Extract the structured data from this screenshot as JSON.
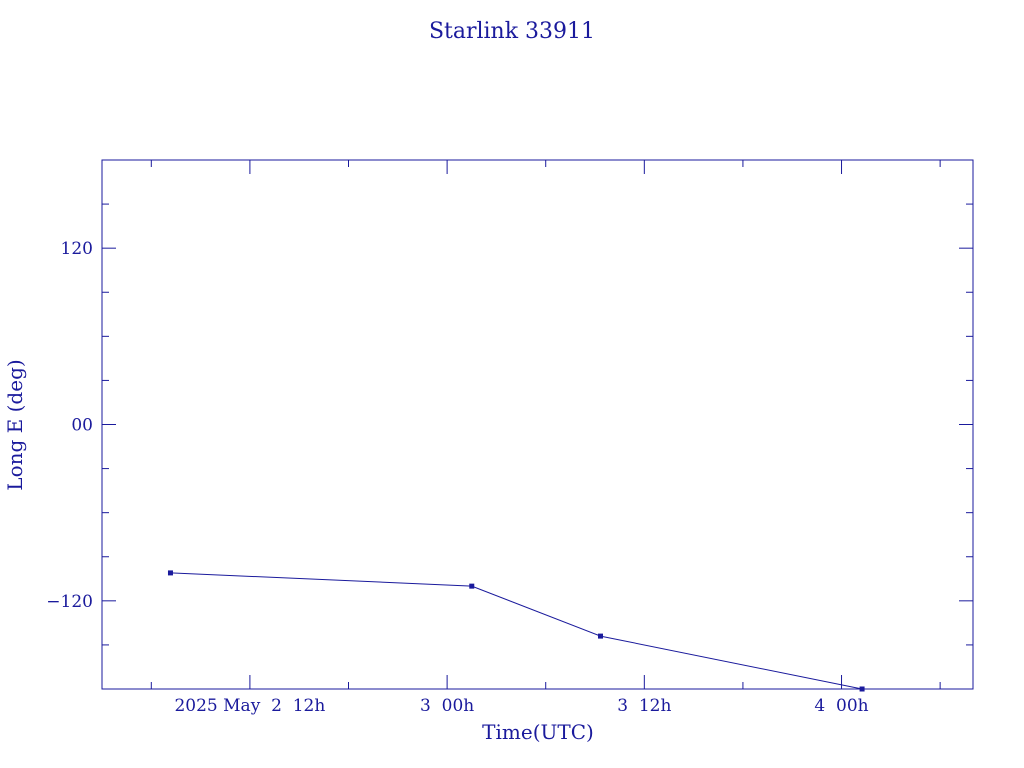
{
  "chart_data": {
    "type": "line",
    "title": "Starlink 33911",
    "xlabel": "Time(UTC)",
    "ylabel": "Long E (deg)",
    "xlim": [
      "2025-05-02T03:00",
      "2025-05-04T08:00"
    ],
    "ylim": [
      -180,
      180
    ],
    "x_ticks": [
      {
        "value": "2025-05-02T12:00",
        "label": "2025 May  2  12h"
      },
      {
        "value": "2025-05-03T00:00",
        "label": "3  00h"
      },
      {
        "value": "2025-05-03T12:00",
        "label": "3  12h"
      },
      {
        "value": "2025-05-04T00:00",
        "label": "4  00h"
      }
    ],
    "y_ticks": [
      {
        "value": 120,
        "label": "120"
      },
      {
        "value": 0,
        "label": "00"
      },
      {
        "value": -120,
        "label": "−120"
      }
    ],
    "series": [
      {
        "x": [
          "2025-05-02T07:10",
          "2025-05-03T01:30",
          "2025-05-03T09:20",
          "2025-05-04T01:15"
        ],
        "y": [
          -101,
          -110,
          -144,
          -180
        ]
      }
    ],
    "grid": false,
    "line_color": "#1a1a9c"
  }
}
